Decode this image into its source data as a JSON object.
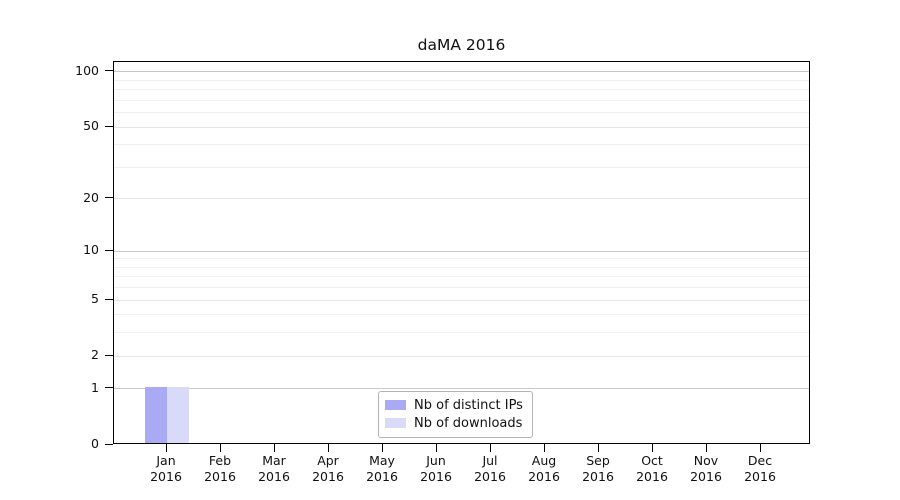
{
  "chart_data": {
    "type": "bar",
    "title": "daMA 2016",
    "categories": [
      "Jan",
      "Feb",
      "Mar",
      "Apr",
      "May",
      "Jun",
      "Jul",
      "Aug",
      "Sep",
      "Oct",
      "Nov",
      "Dec"
    ],
    "category_year": "2016",
    "series": [
      {
        "name": "Nb of distinct IPs",
        "color": "#a9a9f4",
        "values": [
          1,
          0,
          0,
          0,
          0,
          0,
          0,
          0,
          0,
          0,
          0,
          0
        ]
      },
      {
        "name": "Nb of downloads",
        "color": "#d9d9f8",
        "values": [
          1,
          0,
          0,
          0,
          0,
          0,
          0,
          0,
          0,
          0,
          0,
          0
        ]
      }
    ],
    "xlabel": "",
    "ylabel": "",
    "yscale": "log1p",
    "ylim": [
      0,
      113
    ],
    "yticks": [
      0,
      1,
      2,
      5,
      10,
      20,
      50,
      100
    ],
    "minor_yticks": [
      3,
      4,
      6,
      7,
      8,
      9,
      30,
      40,
      60,
      70,
      80,
      90
    ],
    "decade_ticks": [
      1,
      10,
      100
    ],
    "grid": {
      "show": true,
      "major_color": "#c8c8c8",
      "mid_color": "#e6e6e6",
      "minor_color": "#f0f0f0"
    },
    "legend": {
      "position": "lower center",
      "border_color": "#b3b3b3"
    },
    "axis_color": "#000000",
    "text_color": "#111111"
  }
}
